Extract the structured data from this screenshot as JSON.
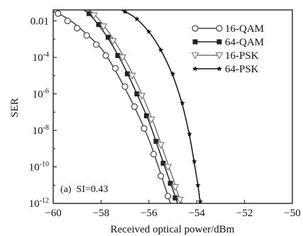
{
  "chart_data": {
    "type": "line",
    "xlabel": "Received optical power/dBm",
    "ylabel": "SER",
    "xlim": [
      -60,
      -50
    ],
    "ylim_log10": [
      -12,
      -1.4
    ],
    "y_scale": "log",
    "x_ticks": [
      -60,
      -58,
      -56,
      -54,
      -52,
      -50
    ],
    "x_tick_labels": [
      "−60",
      "−58",
      "−56",
      "−54",
      "−52",
      "−50"
    ],
    "y_ticks": [
      {
        "value": 0.01,
        "base": "0.01",
        "exp": ""
      },
      {
        "value": 0.0001,
        "base": "10",
        "exp": "-4"
      },
      {
        "value": 1e-06,
        "base": "10",
        "exp": "-6"
      },
      {
        "value": 1e-08,
        "base": "10",
        "exp": "-8"
      },
      {
        "value": 1e-10,
        "base": "10",
        "exp": "-10"
      },
      {
        "value": 1e-12,
        "base": "10",
        "exp": "-12"
      }
    ],
    "annotation": "(a)  SI=0.43",
    "legend_position": "top-right",
    "grid": false,
    "series": [
      {
        "name": "16-QAM",
        "marker": "open-circle",
        "color": "#444444",
        "line": [
          [
            -60.5,
            -1.2
          ],
          [
            -59.5,
            -1.8
          ],
          [
            -58.8,
            -2.5
          ],
          [
            -58.0,
            -3.5
          ],
          [
            -57.5,
            -4.5
          ],
          [
            -57.0,
            -5.7
          ],
          [
            -56.5,
            -7.0
          ],
          [
            -56.0,
            -8.5
          ],
          [
            -55.6,
            -10.0
          ],
          [
            -55.3,
            -11.2
          ],
          [
            -55.1,
            -12.0
          ]
        ],
        "points": [
          [
            -59.8,
            -1.6
          ],
          [
            -59.4,
            -2.0
          ],
          [
            -59.0,
            -2.4
          ],
          [
            -58.6,
            -2.8
          ],
          [
            -58.2,
            -3.3
          ],
          [
            -57.8,
            -3.9
          ],
          [
            -57.4,
            -4.6
          ],
          [
            -57.0,
            -5.6
          ],
          [
            -56.6,
            -6.7
          ],
          [
            -56.2,
            -7.9
          ],
          [
            -55.8,
            -9.3
          ],
          [
            -55.5,
            -10.5
          ],
          [
            -55.2,
            -11.6
          ]
        ]
      },
      {
        "name": "64-QAM",
        "marker": "filled-square",
        "color": "#222222",
        "line": [
          [
            -59.3,
            -1.0
          ],
          [
            -58.6,
            -1.5
          ],
          [
            -58.0,
            -2.4
          ],
          [
            -57.5,
            -3.4
          ],
          [
            -57.0,
            -4.6
          ],
          [
            -56.5,
            -6.0
          ],
          [
            -56.0,
            -7.5
          ],
          [
            -55.6,
            -9.0
          ],
          [
            -55.2,
            -10.5
          ],
          [
            -54.9,
            -11.6
          ],
          [
            -54.8,
            -12.0
          ]
        ],
        "points": [
          [
            -58.9,
            -1.2
          ],
          [
            -58.5,
            -1.6
          ],
          [
            -58.1,
            -2.2
          ],
          [
            -57.7,
            -2.9
          ],
          [
            -57.3,
            -3.9
          ],
          [
            -56.9,
            -4.9
          ],
          [
            -56.5,
            -6.0
          ],
          [
            -56.1,
            -7.2
          ],
          [
            -55.7,
            -8.6
          ],
          [
            -55.4,
            -9.8
          ],
          [
            -55.1,
            -10.9
          ],
          [
            -54.9,
            -11.7
          ]
        ]
      },
      {
        "name": "16-PSK",
        "marker": "open-down-triangle",
        "color": "#777777",
        "line": [
          [
            -59.1,
            -1.0
          ],
          [
            -58.4,
            -1.5
          ],
          [
            -57.8,
            -2.4
          ],
          [
            -57.3,
            -3.4
          ],
          [
            -56.8,
            -4.6
          ],
          [
            -56.3,
            -6.0
          ],
          [
            -55.8,
            -7.6
          ],
          [
            -55.4,
            -9.1
          ],
          [
            -55.0,
            -10.6
          ],
          [
            -54.7,
            -11.8
          ],
          [
            -54.6,
            -12.0
          ]
        ],
        "points": [
          [
            -58.7,
            -1.3
          ],
          [
            -58.3,
            -1.7
          ],
          [
            -57.9,
            -2.3
          ],
          [
            -57.5,
            -3.1
          ],
          [
            -57.1,
            -4.0
          ],
          [
            -56.7,
            -5.0
          ],
          [
            -56.3,
            -6.1
          ],
          [
            -55.9,
            -7.4
          ],
          [
            -55.5,
            -8.8
          ],
          [
            -55.2,
            -10.0
          ],
          [
            -54.9,
            -11.1
          ],
          [
            -54.7,
            -11.8
          ]
        ]
      },
      {
        "name": "64-PSK",
        "marker": "filled-star",
        "color": "#111111",
        "line": [
          [
            -57.3,
            -1.3
          ],
          [
            -56.6,
            -1.8
          ],
          [
            -56.0,
            -2.6
          ],
          [
            -55.5,
            -3.6
          ],
          [
            -55.0,
            -5.0
          ],
          [
            -54.6,
            -6.6
          ],
          [
            -54.3,
            -8.3
          ],
          [
            -54.1,
            -9.8
          ],
          [
            -53.95,
            -11.0
          ],
          [
            -53.85,
            -12.0
          ]
        ],
        "points": [
          [
            -57.0,
            -1.5
          ],
          [
            -56.5,
            -1.9
          ],
          [
            -56.0,
            -2.6
          ],
          [
            -55.5,
            -3.6
          ],
          [
            -55.0,
            -4.9
          ],
          [
            -54.6,
            -6.5
          ],
          [
            -54.3,
            -8.2
          ],
          [
            -54.1,
            -9.7
          ],
          [
            -53.95,
            -11.0
          ],
          [
            -53.85,
            -11.9
          ]
        ]
      }
    ]
  }
}
